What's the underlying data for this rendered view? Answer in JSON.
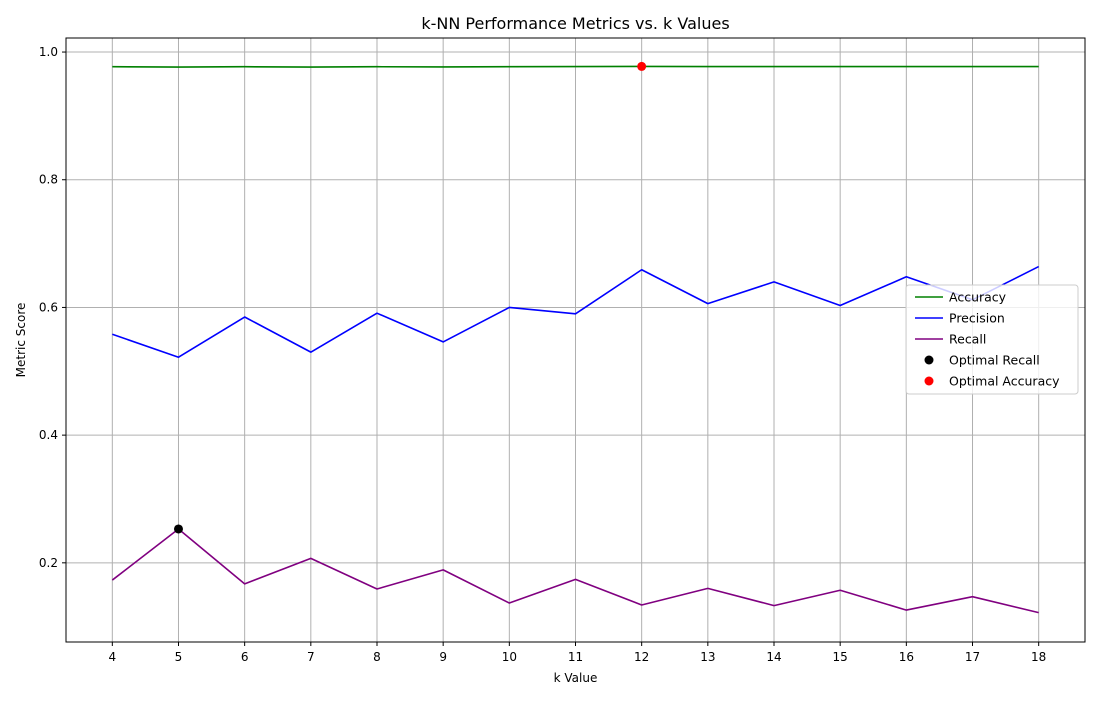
{
  "chart_data": {
    "type": "line",
    "title": "k-NN Performance Metrics vs. k Values",
    "xlabel": "k Value",
    "ylabel": "Metric Score",
    "x": [
      4,
      5,
      6,
      7,
      8,
      9,
      10,
      11,
      12,
      13,
      14,
      15,
      16,
      17,
      18
    ],
    "xlim": [
      3.3,
      18.7
    ],
    "ylim": [
      0.076,
      1.022
    ],
    "yticks": [
      "0.2",
      "0.4",
      "0.6",
      "0.8",
      "1.0"
    ],
    "ytick_values": [
      0.2,
      0.4,
      0.6,
      0.8,
      1.0
    ],
    "grid": true,
    "legend_position": "center-right",
    "series": [
      {
        "name": "Accuracy",
        "color": "#008000",
        "values": [
          0.977,
          0.9765,
          0.977,
          0.9765,
          0.977,
          0.9767,
          0.977,
          0.9772,
          0.9775,
          0.9772,
          0.9773,
          0.9772,
          0.9773,
          0.9772,
          0.9773
        ]
      },
      {
        "name": "Precision",
        "color": "#0000ff",
        "values": [
          0.558,
          0.522,
          0.585,
          0.53,
          0.591,
          0.546,
          0.6,
          0.59,
          0.659,
          0.606,
          0.64,
          0.603,
          0.648,
          0.612,
          0.664
        ]
      },
      {
        "name": "Recall",
        "color": "#800080",
        "values": [
          0.173,
          0.253,
          0.167,
          0.207,
          0.159,
          0.189,
          0.137,
          0.174,
          0.134,
          0.16,
          0.133,
          0.157,
          0.126,
          0.147,
          0.122
        ]
      }
    ],
    "points": [
      {
        "name": "Optimal Recall",
        "color": "#000000",
        "x": 5,
        "y": 0.253
      },
      {
        "name": "Optimal Accuracy",
        "color": "#ff0000",
        "x": 12,
        "y": 0.9775
      }
    ]
  }
}
